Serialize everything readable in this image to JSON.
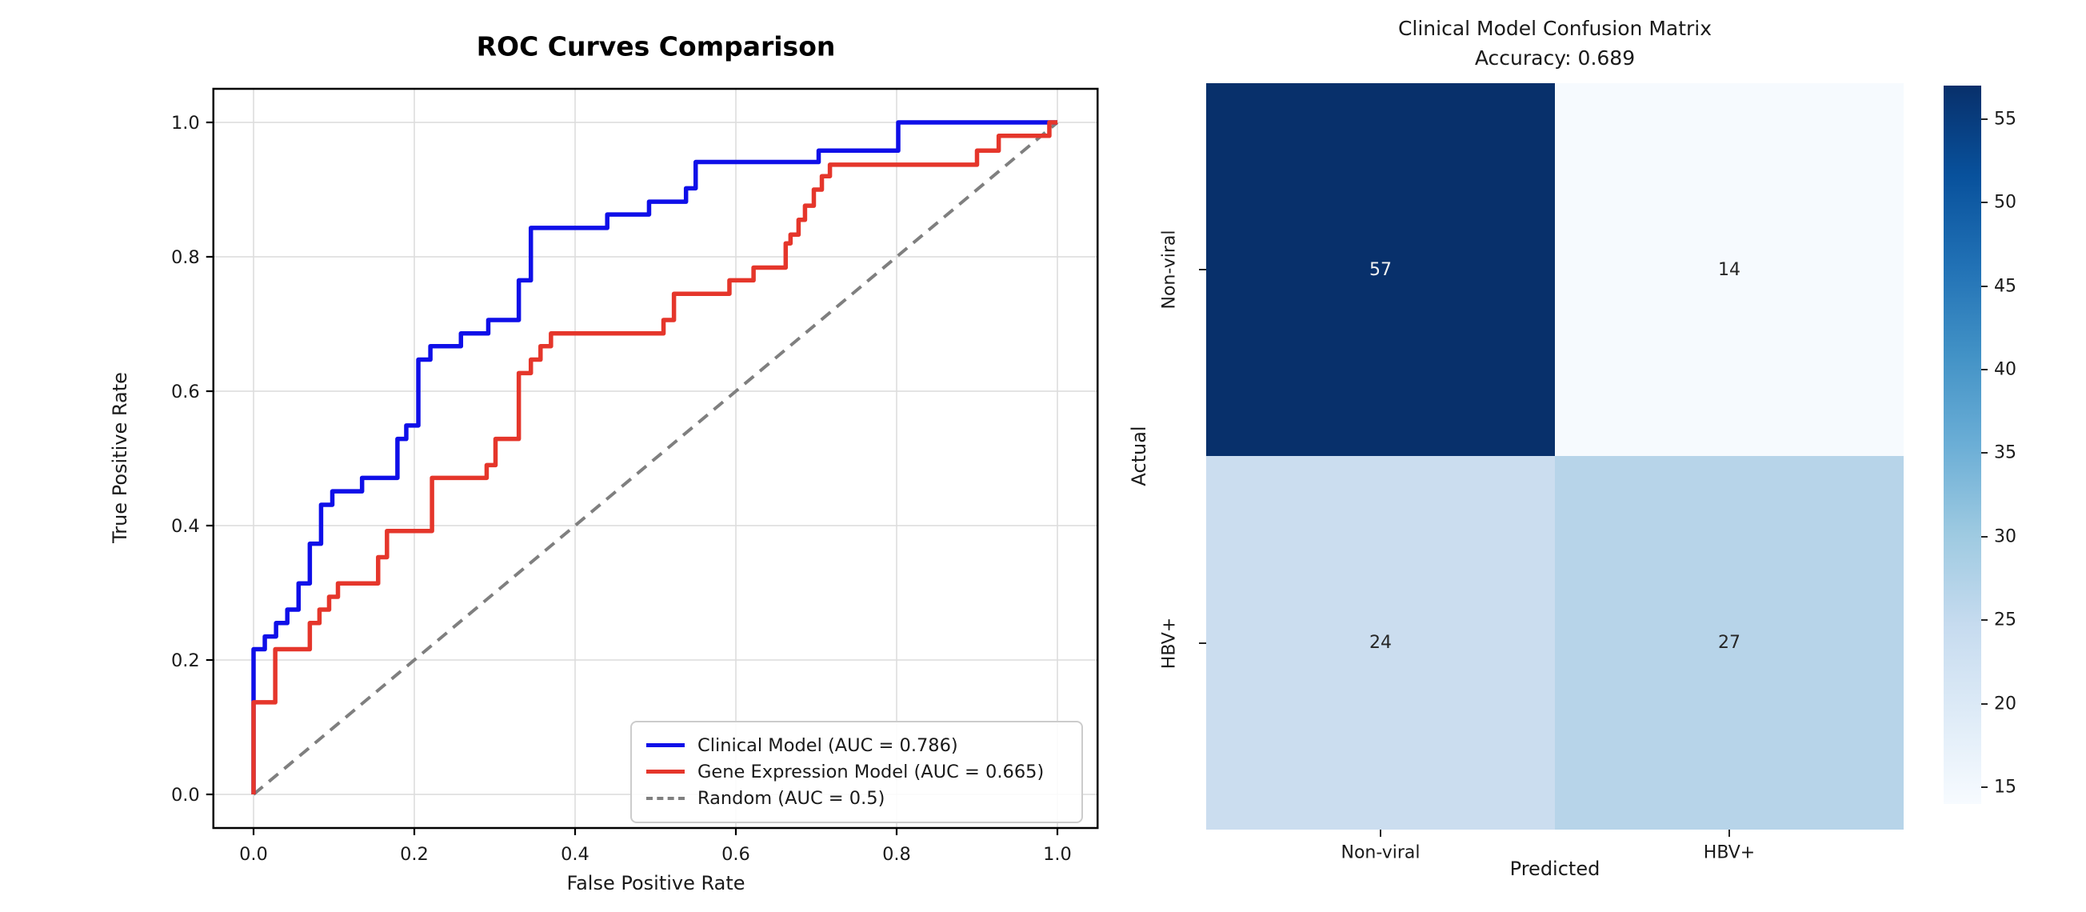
{
  "figure": {
    "background": "#ffffff",
    "text_color": "#1a1a1a"
  },
  "chart_data": [
    {
      "type": "line",
      "subtype": "roc-step-curves",
      "title": "ROC Curves Comparison",
      "xlabel": "False Positive Rate",
      "ylabel": "True Positive Rate",
      "xlim": [
        -0.05,
        1.05
      ],
      "ylim": [
        -0.05,
        1.05
      ],
      "grid": true,
      "legend_position": "lower right",
      "xticks": [
        0.0,
        0.2,
        0.4,
        0.6,
        0.8,
        1.0
      ],
      "xtick_labels": [
        "0.0",
        "0.2",
        "0.4",
        "0.6",
        "0.8",
        "1.0"
      ],
      "yticks": [
        0.0,
        0.2,
        0.4,
        0.6,
        0.8,
        1.0
      ],
      "ytick_labels": [
        "0.0",
        "0.2",
        "0.4",
        "0.6",
        "0.8",
        "1.0"
      ],
      "series": [
        {
          "name": "Random (AUC = 0.5)",
          "auc": 0.5,
          "color": "#7f7f7f",
          "style": "dashed",
          "points": [
            [
              0,
              0
            ],
            [
              1,
              1
            ]
          ]
        },
        {
          "name": "Clinical Model (AUC = 0.786)",
          "auc": 0.786,
          "color": "#0f0fe8",
          "style": "solid",
          "steps": [
            [
              0.0,
              0.216
            ],
            [
              0.014,
              0.235
            ],
            [
              0.028,
              0.255
            ],
            [
              0.042,
              0.275
            ],
            [
              0.056,
              0.314
            ],
            [
              0.07,
              0.373
            ],
            [
              0.084,
              0.431
            ],
            [
              0.098,
              0.451
            ],
            [
              0.135,
              0.471
            ],
            [
              0.179,
              0.529
            ],
            [
              0.19,
              0.549
            ],
            [
              0.205,
              0.647
            ],
            [
              0.22,
              0.667
            ],
            [
              0.258,
              0.686
            ],
            [
              0.292,
              0.706
            ],
            [
              0.33,
              0.765
            ],
            [
              0.345,
              0.843
            ],
            [
              0.44,
              0.863
            ],
            [
              0.492,
              0.882
            ],
            [
              0.538,
              0.902
            ],
            [
              0.55,
              0.941
            ],
            [
              0.703,
              0.958
            ],
            [
              0.802,
              1.0
            ],
            [
              1.0,
              1.0
            ]
          ]
        },
        {
          "name": "Gene Expression Model (AUC = 0.665)",
          "auc": 0.665,
          "color": "#e5362b",
          "style": "solid",
          "steps": [
            [
              0.0,
              0.137
            ],
            [
              0.027,
              0.216
            ],
            [
              0.07,
              0.255
            ],
            [
              0.082,
              0.275
            ],
            [
              0.094,
              0.294
            ],
            [
              0.105,
              0.314
            ],
            [
              0.155,
              0.353
            ],
            [
              0.166,
              0.392
            ],
            [
              0.222,
              0.471
            ],
            [
              0.29,
              0.49
            ],
            [
              0.301,
              0.529
            ],
            [
              0.33,
              0.627
            ],
            [
              0.345,
              0.647
            ],
            [
              0.357,
              0.667
            ],
            [
              0.37,
              0.686
            ],
            [
              0.51,
              0.706
            ],
            [
              0.523,
              0.745
            ],
            [
              0.592,
              0.765
            ],
            [
              0.622,
              0.784
            ],
            [
              0.662,
              0.82
            ],
            [
              0.668,
              0.833
            ],
            [
              0.678,
              0.855
            ],
            [
              0.686,
              0.876
            ],
            [
              0.697,
              0.9
            ],
            [
              0.707,
              0.92
            ],
            [
              0.717,
              0.937
            ],
            [
              0.9,
              0.958
            ],
            [
              0.927,
              0.98
            ],
            [
              0.99,
              1.0
            ],
            [
              1.0,
              1.0
            ]
          ]
        }
      ]
    },
    {
      "type": "heatmap",
      "subtype": "confusion-matrix",
      "title": "Clinical Model Confusion Matrix",
      "subtitle": "Accuracy: 0.689",
      "xlabel": "Predicted",
      "ylabel": "Actual",
      "x_categories": [
        "Non-viral",
        "HBV+"
      ],
      "y_categories": [
        "Non-viral",
        "HBV+"
      ],
      "values": [
        [
          57,
          14
        ],
        [
          24,
          27
        ]
      ],
      "cell_colors": [
        [
          "#08306b",
          "#f6fafe"
        ],
        [
          "#cbddef",
          "#b7d4e9"
        ]
      ],
      "cell_text_colors": [
        [
          "#f2f2f2",
          "#262626"
        ],
        [
          "#262626",
          "#262626"
        ]
      ],
      "colorbar": {
        "vmin": 14,
        "vmax": 57,
        "ticks": [
          15,
          20,
          25,
          30,
          35,
          40,
          45,
          50,
          55
        ],
        "tick_labels": [
          "15",
          "20",
          "25",
          "30",
          "35",
          "40",
          "45",
          "50",
          "55"
        ],
        "gradient_bottom_to_top": [
          "#f7fbff",
          "#deebf7",
          "#c6dbef",
          "#9ecae1",
          "#6baed6",
          "#4292c6",
          "#2171b5",
          "#08519c",
          "#08306b"
        ]
      }
    }
  ]
}
